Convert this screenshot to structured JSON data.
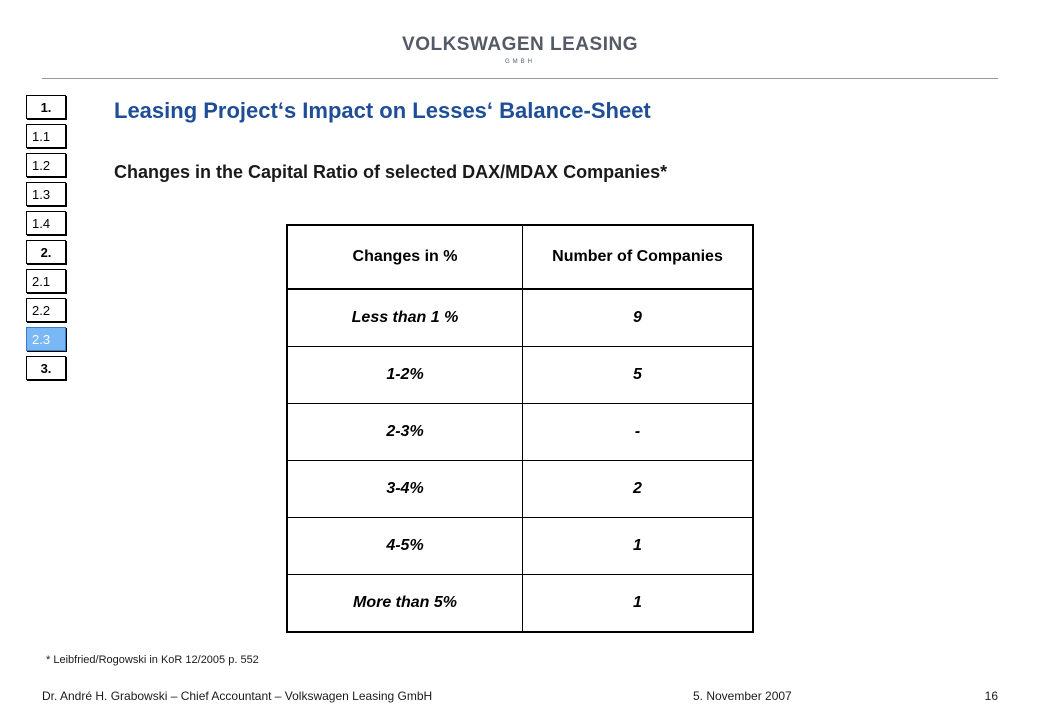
{
  "header": {
    "brand_name": "VOLKSWAGEN LEASING",
    "brand_sub": "GMBH"
  },
  "nav": {
    "items": [
      {
        "label": "1."
      },
      {
        "label": "1.1"
      },
      {
        "label": "1.2"
      },
      {
        "label": "1.3"
      },
      {
        "label": "1.4"
      },
      {
        "label": "2."
      },
      {
        "label": "2.1"
      },
      {
        "label": "2.2"
      },
      {
        "label": "2.3"
      },
      {
        "label": "3."
      }
    ],
    "active_label": "2.3"
  },
  "title": "Leasing Project‘s Impact on Lesses‘ Balance-Sheet",
  "subtitle": "Changes in the Capital Ratio of selected DAX/MDAX Companies*",
  "chart_data": {
    "type": "table",
    "columns": [
      "Changes in %",
      "Number of Companies"
    ],
    "rows": [
      [
        "Less than 1 %",
        "9"
      ],
      [
        "1-2%",
        "5"
      ],
      [
        "2-3%",
        "-"
      ],
      [
        "3-4%",
        "2"
      ],
      [
        "4-5%",
        "1"
      ],
      [
        "More than 5%",
        "1"
      ]
    ]
  },
  "footnote": "* Leibfried/Rogowski in KoR 12/2005 p. 552",
  "footer": {
    "author": "Dr. André H. Grabowski – Chief Accountant – Volkswagen Leasing GmbH",
    "date": "5. November 2007",
    "page": "16"
  },
  "colors": {
    "title": "#1f4e96",
    "active_nav": "#79b8f4",
    "brand": "#555b66"
  }
}
